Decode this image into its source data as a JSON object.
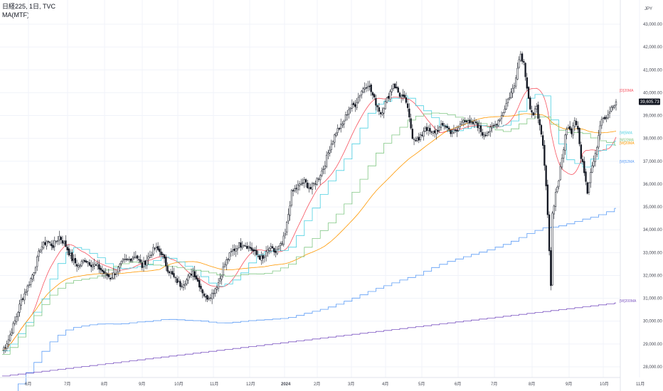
{
  "legend": {
    "symbol": "日経225, 1日, TVC",
    "indicator": "MA(MTF)"
  },
  "chart_data": {
    "type": "candlestick",
    "currency": "JPY",
    "current_price": 39605.73,
    "current_price_label": "39,605.73",
    "ylim": [
      27500,
      43500
    ],
    "y_ticks": [
      28000,
      29000,
      30000,
      31000,
      32000,
      33000,
      34000,
      35000,
      36000,
      37000,
      38000,
      39000,
      40000,
      41000,
      42000,
      43000
    ],
    "y_tick_labels": [
      "28,000.00",
      "29,000.00",
      "30,000.00",
      "31,000.00",
      "32,000.00",
      "33,000.00",
      "34,000.00",
      "35,000.00",
      "36,000.00",
      "37,000.00",
      "38,000.00",
      "39,000.00",
      "40,000.00",
      "41,000.00",
      "42,000.00",
      "43,000.00"
    ],
    "x_labels": [
      {
        "label": "6月",
        "bold": false
      },
      {
        "label": "7月",
        "bold": false
      },
      {
        "label": "8月",
        "bold": false
      },
      {
        "label": "9月",
        "bold": false
      },
      {
        "label": "10月",
        "bold": false
      },
      {
        "label": "11月",
        "bold": false
      },
      {
        "label": "12月",
        "bold": false
      },
      {
        "label": "2024",
        "bold": true
      },
      {
        "label": "2月",
        "bold": false
      },
      {
        "label": "3月",
        "bold": false
      },
      {
        "label": "4月",
        "bold": false
      },
      {
        "label": "5月",
        "bold": false
      },
      {
        "label": "6月",
        "bold": false
      },
      {
        "label": "7月",
        "bold": false
      },
      {
        "label": "8月",
        "bold": false
      },
      {
        "label": "9月",
        "bold": false
      },
      {
        "label": "10月",
        "bold": false
      },
      {
        "label": "11月",
        "bold": false
      }
    ],
    "price_anchors": [
      [
        0,
        28700
      ],
      [
        4,
        29200
      ],
      [
        8,
        30000
      ],
      [
        12,
        30900
      ],
      [
        16,
        31500
      ],
      [
        20,
        32200
      ],
      [
        24,
        33200
      ],
      [
        28,
        33500
      ],
      [
        32,
        33300
      ],
      [
        36,
        33700
      ],
      [
        40,
        33300
      ],
      [
        44,
        32700
      ],
      [
        48,
        32400
      ],
      [
        52,
        32700
      ],
      [
        56,
        32500
      ],
      [
        60,
        32400
      ],
      [
        64,
        32100
      ],
      [
        68,
        31900
      ],
      [
        72,
        32200
      ],
      [
        76,
        32600
      ],
      [
        80,
        32700
      ],
      [
        84,
        32900
      ],
      [
        88,
        32400
      ],
      [
        92,
        32800
      ],
      [
        96,
        33200
      ],
      [
        100,
        33000
      ],
      [
        104,
        32300
      ],
      [
        108,
        31900
      ],
      [
        112,
        31600
      ],
      [
        116,
        31800
      ],
      [
        120,
        32200
      ],
      [
        124,
        31600
      ],
      [
        128,
        31000
      ],
      [
        132,
        31200
      ],
      [
        136,
        31700
      ],
      [
        140,
        32500
      ],
      [
        144,
        33000
      ],
      [
        148,
        33300
      ],
      [
        152,
        33400
      ],
      [
        156,
        33200
      ],
      [
        160,
        32900
      ],
      [
        164,
        32700
      ],
      [
        168,
        33200
      ],
      [
        172,
        33000
      ],
      [
        176,
        33400
      ],
      [
        178,
        33800
      ],
      [
        180,
        34700
      ],
      [
        182,
        35600
      ],
      [
        186,
        35900
      ],
      [
        190,
        36100
      ],
      [
        194,
        35800
      ],
      [
        198,
        36200
      ],
      [
        202,
        36700
      ],
      [
        206,
        37600
      ],
      [
        210,
        38300
      ],
      [
        214,
        38600
      ],
      [
        218,
        39300
      ],
      [
        222,
        39500
      ],
      [
        226,
        40100
      ],
      [
        230,
        40400
      ],
      [
        234,
        39700
      ],
      [
        238,
        39100
      ],
      [
        242,
        39700
      ],
      [
        246,
        40400
      ],
      [
        250,
        39900
      ],
      [
        254,
        39600
      ],
      [
        258,
        38100
      ],
      [
        262,
        37900
      ],
      [
        266,
        38500
      ],
      [
        270,
        38200
      ],
      [
        274,
        38400
      ],
      [
        278,
        38600
      ],
      [
        282,
        38300
      ],
      [
        286,
        38300
      ],
      [
        290,
        38900
      ],
      [
        294,
        38600
      ],
      [
        298,
        38700
      ],
      [
        302,
        38200
      ],
      [
        306,
        38300
      ],
      [
        310,
        38600
      ],
      [
        314,
        39000
      ],
      [
        318,
        39700
      ],
      [
        322,
        40300
      ],
      [
        324,
        41200
      ],
      [
        326,
        41700
      ],
      [
        328,
        41300
      ],
      [
        330,
        40300
      ],
      [
        332,
        39300
      ],
      [
        334,
        38900
      ],
      [
        336,
        39500
      ],
      [
        338,
        38500
      ],
      [
        340,
        37600
      ],
      [
        342,
        35900
      ],
      [
        344,
        33200
      ],
      [
        345,
        31600
      ],
      [
        346,
        34700
      ],
      [
        348,
        35600
      ],
      [
        350,
        36200
      ],
      [
        352,
        37100
      ],
      [
        354,
        38100
      ],
      [
        356,
        38600
      ],
      [
        358,
        38300
      ],
      [
        360,
        38900
      ],
      [
        362,
        38400
      ],
      [
        364,
        37100
      ],
      [
        366,
        36600
      ],
      [
        368,
        35700
      ],
      [
        370,
        36600
      ],
      [
        372,
        37100
      ],
      [
        374,
        37700
      ],
      [
        376,
        38600
      ],
      [
        378,
        38900
      ],
      [
        380,
        38800
      ],
      [
        382,
        39200
      ],
      [
        384,
        39400
      ],
      [
        386,
        39605
      ]
    ],
    "moving_averages": [
      {
        "label": "[D]20MA",
        "color": "#f7525f"
      },
      {
        "label": "[W]20MA",
        "color": "#ff9800"
      },
      {
        "label": "[M]20MA",
        "color": "#81c784"
      },
      {
        "label": "[W]5MA",
        "color": "#4dd0e1"
      },
      {
        "label": "[W]52MA",
        "color": "#5b9cf6"
      },
      {
        "label": "[W]200MA",
        "color": "#7e57c2"
      }
    ]
  }
}
